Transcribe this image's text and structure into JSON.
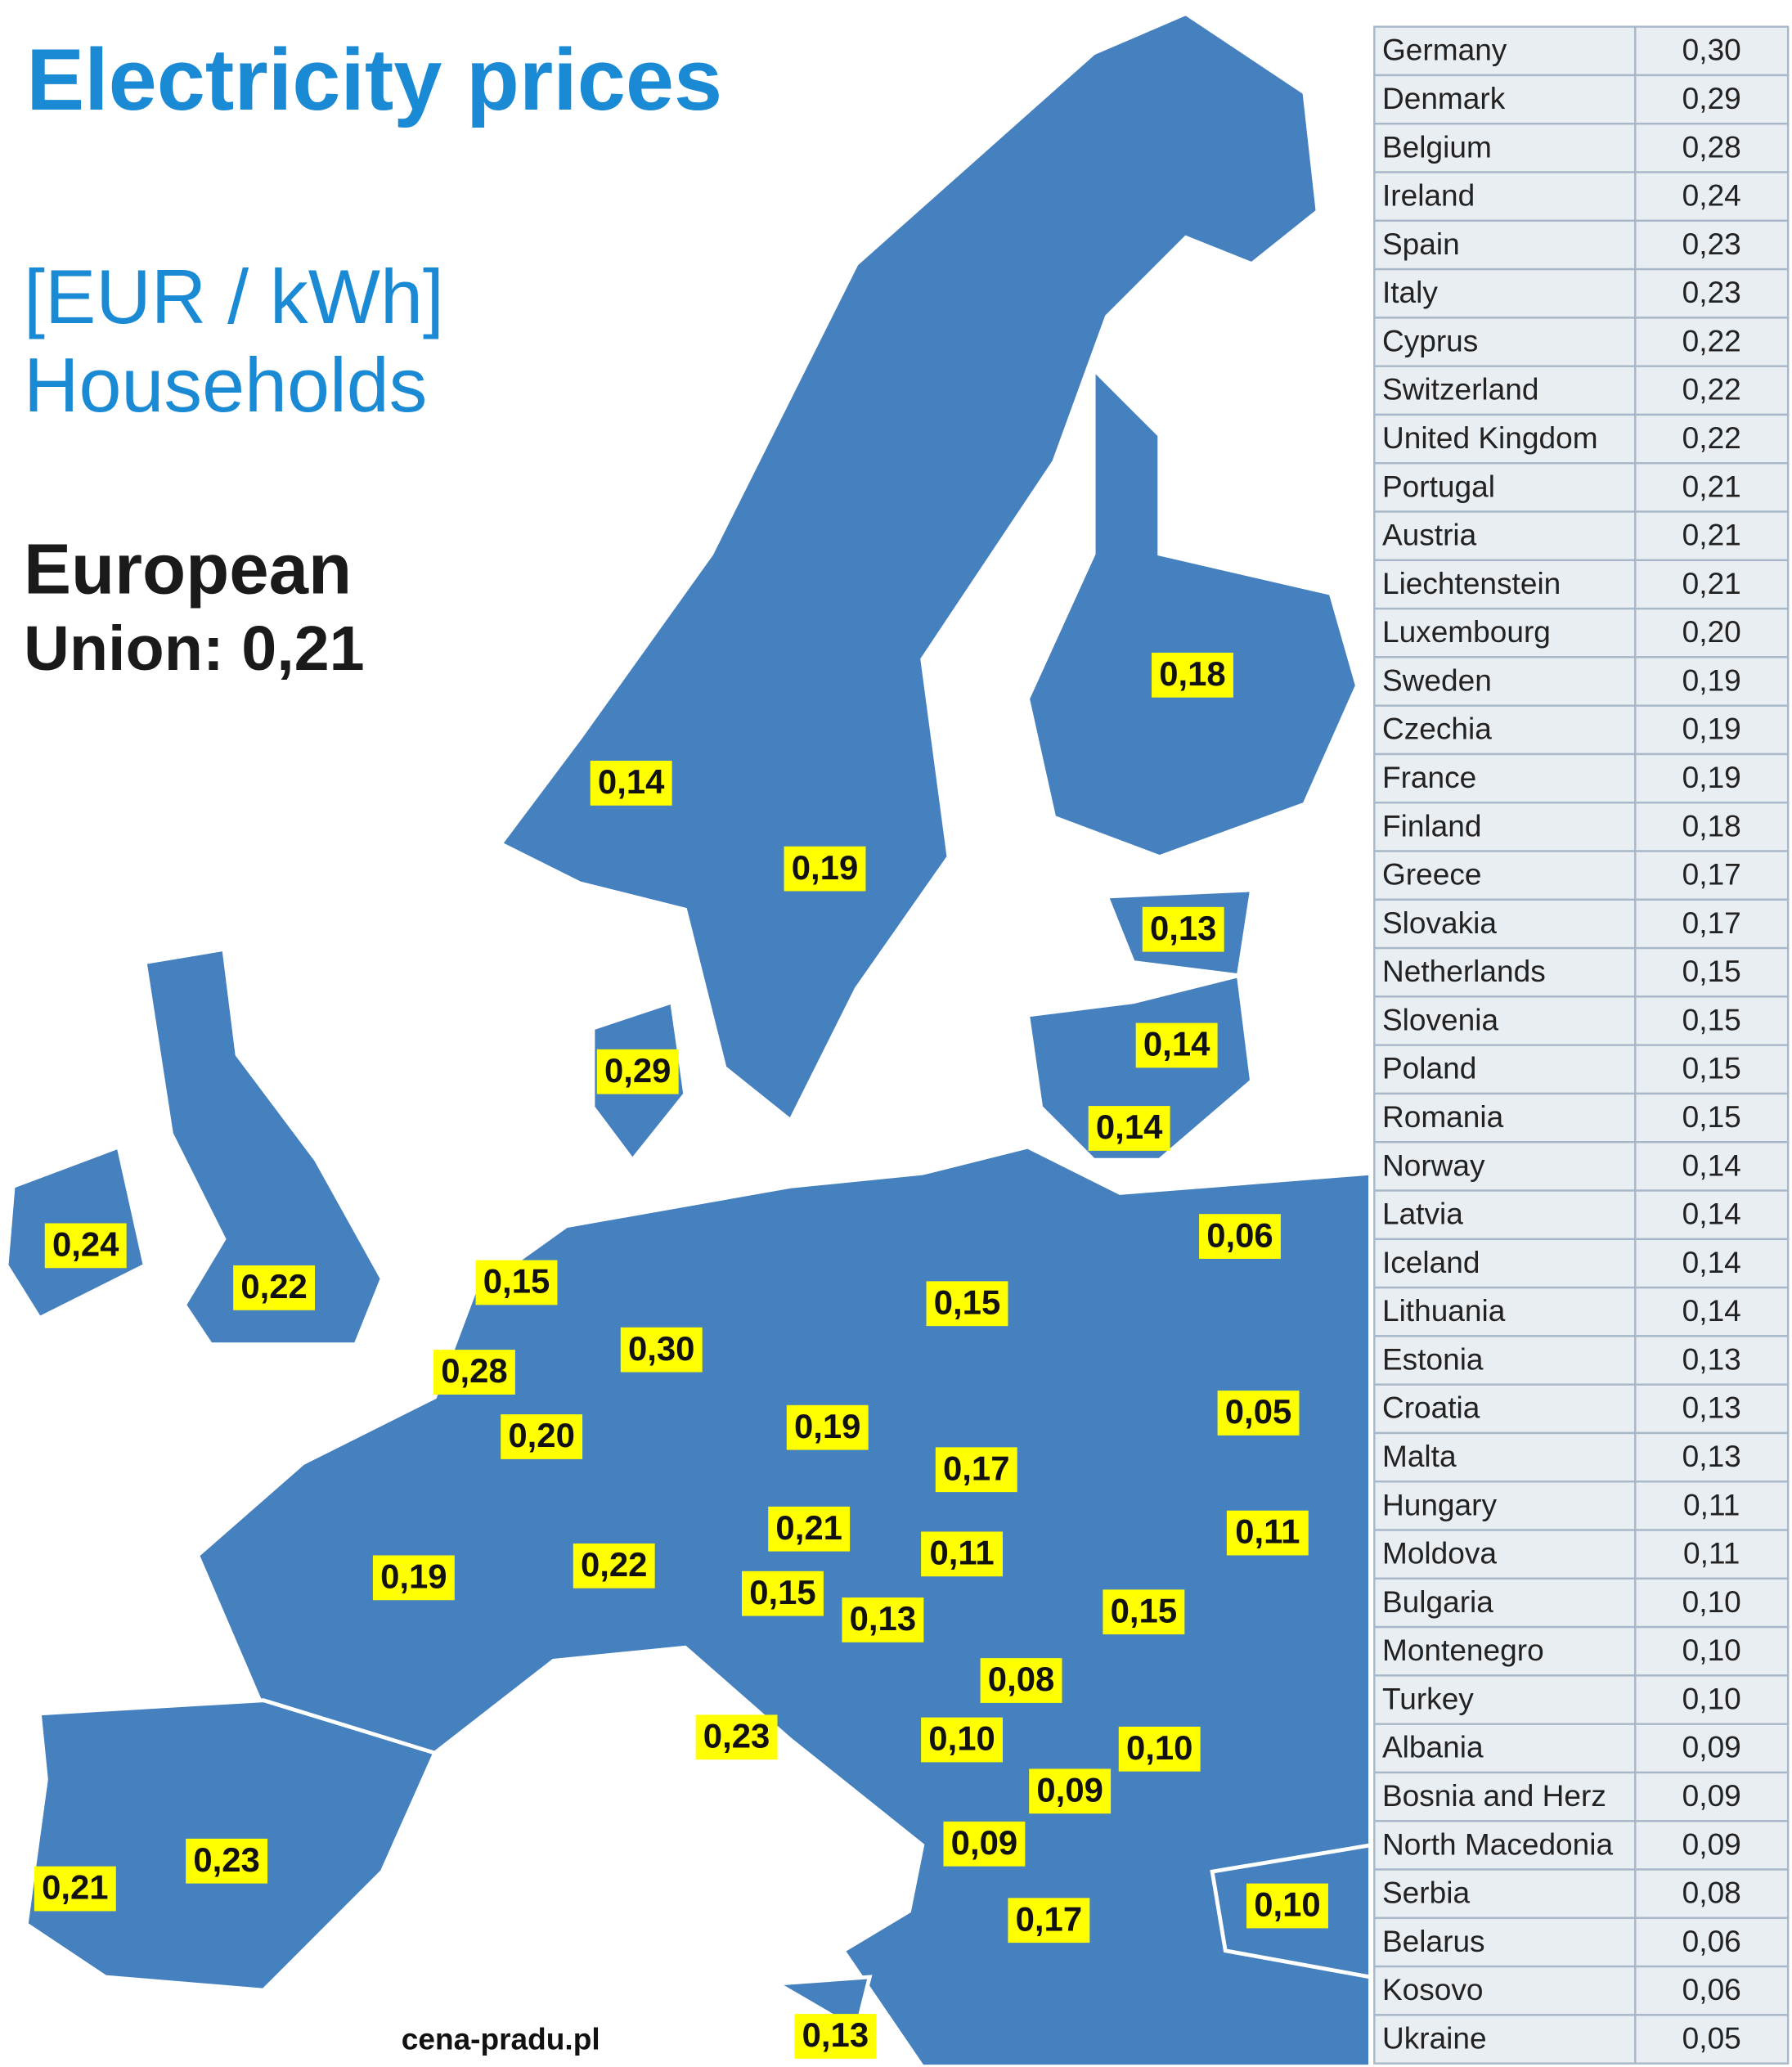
{
  "header": {
    "title": "Electricity prices",
    "unit": "[EUR / kWh]",
    "subtitle": "Households",
    "eu_line1": "European",
    "eu_line2": "Union: 0,21"
  },
  "source": "cena-pradu.pl",
  "map_labels": [
    "0,18",
    "0,14",
    "0,19",
    "0,13",
    "0,14",
    "0,29",
    "0,14",
    "0,06",
    "0,24",
    "0,22",
    "0,15",
    "0,15",
    "0,30",
    "0,28",
    "0,05",
    "0,20",
    "0,19",
    "0,17",
    "0,21",
    "0,11",
    "0,11",
    "0,22",
    "0,19",
    "0,15",
    "0,13",
    "0,15",
    "0,08",
    "0,23",
    "0,10",
    "0,10",
    "0,09",
    "0,09",
    "0,23",
    "0,21",
    "0,17",
    "0,10",
    "0,13"
  ],
  "table": {
    "rows": [
      [
        "Germany",
        "0,30"
      ],
      [
        "Denmark",
        "0,29"
      ],
      [
        "Belgium",
        "0,28"
      ],
      [
        "Ireland",
        "0,24"
      ],
      [
        "Spain",
        "0,23"
      ],
      [
        "Italy",
        "0,23"
      ],
      [
        "Cyprus",
        "0,22"
      ],
      [
        "Switzerland",
        "0,22"
      ],
      [
        "United Kingdom",
        "0,22"
      ],
      [
        "Portugal",
        "0,21"
      ],
      [
        "Austria",
        "0,21"
      ],
      [
        "Liechtenstein",
        "0,21"
      ],
      [
        "Luxembourg",
        "0,20"
      ],
      [
        "Sweden",
        "0,19"
      ],
      [
        "Czechia",
        "0,19"
      ],
      [
        "France",
        "0,19"
      ],
      [
        "Finland",
        "0,18"
      ],
      [
        "Greece",
        "0,17"
      ],
      [
        "Slovakia",
        "0,17"
      ],
      [
        "Netherlands",
        "0,15"
      ],
      [
        "Slovenia",
        "0,15"
      ],
      [
        "Poland",
        "0,15"
      ],
      [
        "Romania",
        "0,15"
      ],
      [
        "Norway",
        "0,14"
      ],
      [
        "Latvia",
        "0,14"
      ],
      [
        "Iceland",
        "0,14"
      ],
      [
        "Lithuania",
        "0,14"
      ],
      [
        "Estonia",
        "0,13"
      ],
      [
        "Croatia",
        "0,13"
      ],
      [
        "Malta",
        "0,13"
      ],
      [
        "Hungary",
        "0,11"
      ],
      [
        "Moldova",
        "0,11"
      ],
      [
        "Bulgaria",
        "0,10"
      ],
      [
        "Montenegro",
        "0,10"
      ],
      [
        "Turkey",
        "0,10"
      ],
      [
        "Albania",
        "0,09"
      ],
      [
        "Bosnia and Herz",
        "0,09"
      ],
      [
        "North Macedonia",
        "0,09"
      ],
      [
        "Serbia",
        "0,08"
      ],
      [
        "Belarus",
        "0,06"
      ],
      [
        "Kosovo",
        "0,06"
      ],
      [
        "Ukraine",
        "0,05"
      ]
    ]
  }
}
